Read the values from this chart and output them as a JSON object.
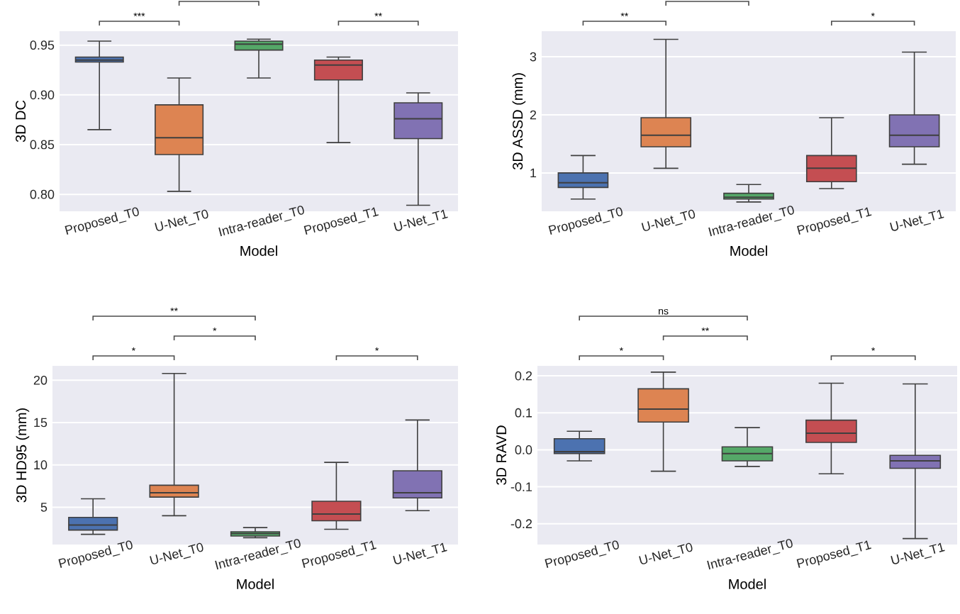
{
  "chart_data": [
    {
      "type": "box",
      "xlabel": "Model",
      "ylabel": "3D DC",
      "categories": [
        "Proposed_T0",
        "U-Net_T0",
        "Intra-reader_T0",
        "Proposed_T1",
        "U-Net_T1"
      ],
      "colors": [
        "#4c72b0",
        "#dd8452",
        "#55a868",
        "#c44e52",
        "#8172b3"
      ],
      "boxes": [
        {
          "low": 0.865,
          "q1": 0.933,
          "median": 0.935,
          "q3": 0.938,
          "high": 0.954
        },
        {
          "low": 0.803,
          "q1": 0.84,
          "median": 0.857,
          "q3": 0.89,
          "high": 0.917
        },
        {
          "low": 0.917,
          "q1": 0.945,
          "median": 0.951,
          "q3": 0.954,
          "high": 0.956
        },
        {
          "low": 0.852,
          "q1": 0.915,
          "median": 0.93,
          "q3": 0.935,
          "high": 0.938
        },
        {
          "low": 0.789,
          "q1": 0.856,
          "median": 0.876,
          "q3": 0.892,
          "high": 0.902
        }
      ],
      "ylim": [
        0.783,
        0.964
      ],
      "yticks": [
        {
          "value": 0.8,
          "label": "0.80"
        },
        0.85,
        {
          "value": 0.9,
          "label": "0.90"
        },
        0.95
      ],
      "grid": "y",
      "annotations": [
        "***",
        "**"
      ]
    },
    {
      "type": "box",
      "xlabel": "Model",
      "ylabel": "3D ASSD (mm)",
      "categories": [
        "Proposed_T0",
        "U-Net_T0",
        "Intra-reader_T0",
        "Proposed_T1",
        "U-Net_T1"
      ],
      "colors": [
        "#4c72b0",
        "#dd8452",
        "#55a868",
        "#c44e52",
        "#8172b3"
      ],
      "boxes": [
        {
          "low": 0.55,
          "q1": 0.75,
          "median": 0.83,
          "q3": 1.0,
          "high": 1.3
        },
        {
          "low": 1.08,
          "q1": 1.45,
          "median": 1.65,
          "q3": 1.95,
          "high": 3.3
        },
        {
          "low": 0.5,
          "q1": 0.55,
          "median": 0.58,
          "q3": 0.65,
          "high": 0.8
        },
        {
          "low": 0.73,
          "q1": 0.85,
          "median": 1.08,
          "q3": 1.3,
          "high": 1.95
        },
        {
          "low": 1.15,
          "q1": 1.45,
          "median": 1.65,
          "q3": 2.0,
          "high": 3.08
        }
      ],
      "ylim": [
        0.34,
        3.44
      ],
      "yticks": [
        1,
        2,
        3
      ],
      "grid": "y",
      "annotations": [
        "**",
        "*"
      ]
    },
    {
      "type": "box",
      "xlabel": "Model",
      "ylabel": "3D HD95 (mm)",
      "categories": [
        "Proposed_T0",
        "U-Net_T0",
        "Intra-reader_T0",
        "Proposed_T1",
        "U-Net_T1"
      ],
      "colors": [
        "#4c72b0",
        "#dd8452",
        "#55a868",
        "#c44e52",
        "#8172b3"
      ],
      "boxes": [
        {
          "low": 1.8,
          "q1": 2.3,
          "median": 2.9,
          "q3": 3.8,
          "high": 6.0
        },
        {
          "low": 4.0,
          "q1": 6.2,
          "median": 6.7,
          "q3": 7.6,
          "high": 20.8
        },
        {
          "low": 1.4,
          "q1": 1.6,
          "median": 1.9,
          "q3": 2.1,
          "high": 2.6
        },
        {
          "low": 2.4,
          "q1": 3.4,
          "median": 4.2,
          "q3": 5.7,
          "high": 10.3
        },
        {
          "low": 4.6,
          "q1": 6.1,
          "median": 6.7,
          "q3": 9.3,
          "high": 15.3
        }
      ],
      "ylim": [
        0.6,
        21.7
      ],
      "yticks": [
        5,
        10,
        15,
        20
      ],
      "grid": "y",
      "annotations": [
        "**",
        "*",
        "*",
        "*"
      ]
    },
    {
      "type": "box",
      "xlabel": "Model",
      "ylabel": "3D RAVD",
      "categories": [
        "Proposed_T0",
        "U-Net_T0",
        "Intra-reader_T0",
        "Proposed_T1",
        "U-Net_T1"
      ],
      "colors": [
        "#4c72b0",
        "#dd8452",
        "#55a868",
        "#c44e52",
        "#8172b3"
      ],
      "boxes": [
        {
          "low": -0.03,
          "q1": -0.01,
          "median": -0.005,
          "q3": 0.03,
          "high": 0.05
        },
        {
          "low": -0.058,
          "q1": 0.075,
          "median": 0.11,
          "q3": 0.165,
          "high": 0.21
        },
        {
          "low": -0.045,
          "q1": -0.03,
          "median": -0.01,
          "q3": 0.008,
          "high": 0.06
        },
        {
          "low": -0.065,
          "q1": 0.02,
          "median": 0.045,
          "q3": 0.08,
          "high": 0.18
        },
        {
          "low": -0.24,
          "q1": -0.05,
          "median": -0.03,
          "q3": -0.015,
          "high": 0.178
        }
      ],
      "ylim": [
        -0.256,
        0.227
      ],
      "yticks": [
        -0.2,
        -0.1,
        {
          "value": 0,
          "label": "0.0"
        },
        0.1,
        0.2
      ],
      "grid": "y",
      "annotations": [
        "ns",
        "**",
        "*",
        "*"
      ]
    }
  ]
}
